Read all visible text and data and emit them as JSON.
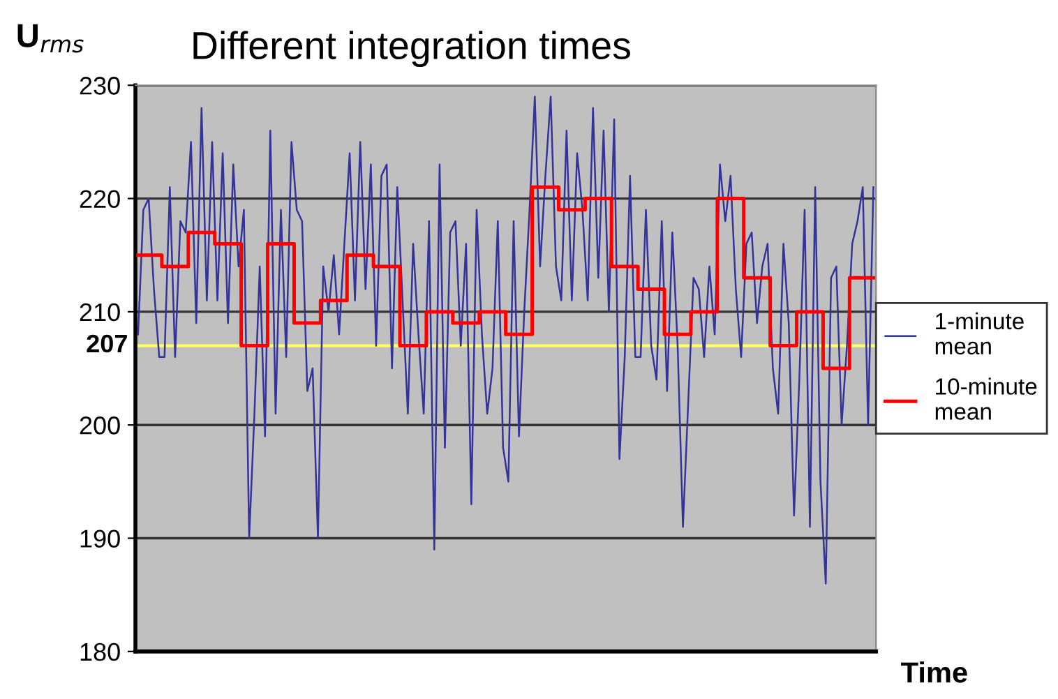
{
  "chart_data": {
    "type": "line",
    "title": "Different integration times",
    "xlabel": "Time",
    "ylabel": "U$_{rms}$",
    "categories": [
      null,
      null,
      null,
      null,
      null,
      null,
      null,
      null,
      null,
      null,
      null,
      null,
      null,
      null,
      null,
      null,
      null,
      null,
      null,
      null,
      null,
      null,
      null,
      null,
      null,
      null,
      null,
      null,
      null,
      null,
      null,
      null,
      null,
      null,
      null,
      null,
      null,
      null,
      null,
      null,
      null,
      null,
      null,
      null,
      null,
      null,
      null,
      null,
      null,
      null,
      null,
      null,
      null,
      null,
      null,
      null,
      null,
      null,
      null,
      null,
      null,
      null,
      null,
      null,
      null,
      null,
      null,
      null,
      null,
      null,
      null,
      null,
      null,
      null,
      null,
      null,
      null,
      null,
      null,
      null,
      null,
      null,
      null,
      null,
      null,
      null,
      null,
      null,
      null,
      null,
      null,
      null,
      null,
      null,
      null,
      null,
      null,
      null,
      null,
      null,
      null,
      null,
      null,
      null,
      null,
      null,
      null,
      null,
      null,
      null,
      null,
      null,
      null,
      null,
      null,
      null,
      null,
      null,
      null,
      null,
      null,
      null,
      null,
      null,
      null,
      null,
      null,
      null,
      null,
      null,
      null,
      null,
      null,
      null,
      null,
      null,
      null,
      null,
      null,
      null
    ],
    "series": [
      {
        "name": "1-minute mean",
        "color": "#333399",
        "values": [
          208,
          219,
          220,
          212,
          206,
          206,
          221,
          206,
          218,
          217,
          225,
          209,
          228,
          211,
          225,
          211,
          224,
          209,
          223,
          214,
          219,
          190,
          201,
          214,
          199,
          226,
          201,
          219,
          206,
          225,
          219,
          218,
          203,
          205,
          190,
          214,
          210,
          215,
          208,
          216,
          224,
          211,
          225,
          212,
          223,
          207,
          222,
          223,
          205,
          221,
          211,
          201,
          216,
          208,
          201,
          218,
          189,
          223,
          198,
          217,
          218,
          207,
          216,
          193,
          219,
          208,
          201,
          205,
          218,
          198,
          195,
          218,
          199,
          210,
          219,
          229,
          214,
          222,
          229,
          214,
          211,
          226,
          211,
          224,
          219,
          211,
          228,
          213,
          226,
          210,
          227,
          197,
          206,
          222,
          206,
          206,
          219,
          207,
          204,
          218,
          203,
          217,
          207,
          191,
          202,
          213,
          212,
          206,
          214,
          208,
          223,
          218,
          222,
          212,
          206,
          216,
          217,
          209,
          214,
          216,
          205,
          201,
          216,
          209,
          192,
          204,
          219,
          191,
          221,
          195,
          186,
          213,
          214,
          200,
          207,
          216,
          218,
          221,
          200,
          221
        ]
      },
      {
        "name": "10-minute mean",
        "type": "step",
        "color": "#ff0000",
        "values": [
          215,
          215,
          215,
          215,
          215,
          214,
          214,
          214,
          214,
          214,
          217,
          217,
          217,
          217,
          217,
          216,
          216,
          216,
          216,
          216,
          207,
          207,
          207,
          207,
          207,
          216,
          216,
          216,
          216,
          216,
          209,
          209,
          209,
          209,
          209,
          211,
          211,
          211,
          211,
          211,
          215,
          215,
          215,
          215,
          215,
          214,
          214,
          214,
          214,
          214,
          207,
          207,
          207,
          207,
          207,
          210,
          210,
          210,
          210,
          210,
          209,
          209,
          209,
          209,
          209,
          210,
          210,
          210,
          210,
          210,
          208,
          208,
          208,
          208,
          208,
          221,
          221,
          221,
          221,
          221,
          219,
          219,
          219,
          219,
          219,
          220,
          220,
          220,
          220,
          220,
          214,
          214,
          214,
          214,
          214,
          212,
          212,
          212,
          212,
          212,
          208,
          208,
          208,
          208,
          208,
          210,
          210,
          210,
          210,
          210,
          220,
          220,
          220,
          220,
          220,
          213,
          213,
          213,
          213,
          213,
          207,
          207,
          207,
          207,
          207,
          210,
          210,
          210,
          210,
          210,
          205,
          205,
          205,
          205,
          205,
          213,
          213,
          213,
          213,
          213
        ]
      }
    ],
    "ylim": [
      180,
      230
    ],
    "yticks": [
      180,
      190,
      200,
      210,
      220,
      230
    ],
    "tick_labels": "y",
    "grid": "y",
    "legend": "right",
    "ref_lines": [
      {
        "axis": "y",
        "value": 207,
        "label": "207",
        "color": "#ffff66"
      }
    ]
  }
}
